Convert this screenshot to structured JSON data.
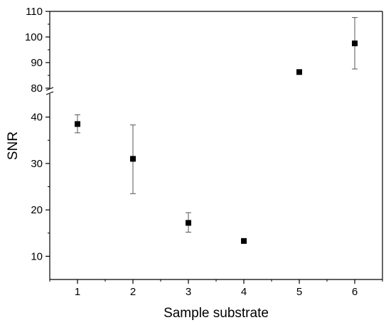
{
  "chart_data": {
    "type": "scatter",
    "title": "",
    "xlabel": "Sample substrate",
    "ylabel": "SNR",
    "xlim": [
      0.5,
      6.5
    ],
    "x_ticks": [
      1,
      2,
      3,
      4,
      5,
      6
    ],
    "y_axis_break": {
      "lower_range": [
        5,
        45
      ],
      "upper_range": [
        80,
        110
      ],
      "lower_ticks": [
        10,
        20,
        30,
        40
      ],
      "upper_ticks": [
        80,
        90,
        100,
        110
      ]
    },
    "grid": false,
    "legend": "none",
    "marker": "square",
    "colors": {
      "marker": "#000000",
      "error_bar": "#555555",
      "axis": "#000000"
    },
    "points": [
      {
        "x": 1,
        "y": 38.5,
        "err_low": 36.6,
        "err_high": 40.5
      },
      {
        "x": 2,
        "y": 31.0,
        "err_low": 23.5,
        "err_high": 38.3
      },
      {
        "x": 3,
        "y": 17.2,
        "err_low": 15.2,
        "err_high": 19.4
      },
      {
        "x": 4,
        "y": 13.3
      },
      {
        "x": 5,
        "y": 86.3
      },
      {
        "x": 6,
        "y": 97.5,
        "err_low": 87.5,
        "err_high": 107.6
      }
    ]
  }
}
